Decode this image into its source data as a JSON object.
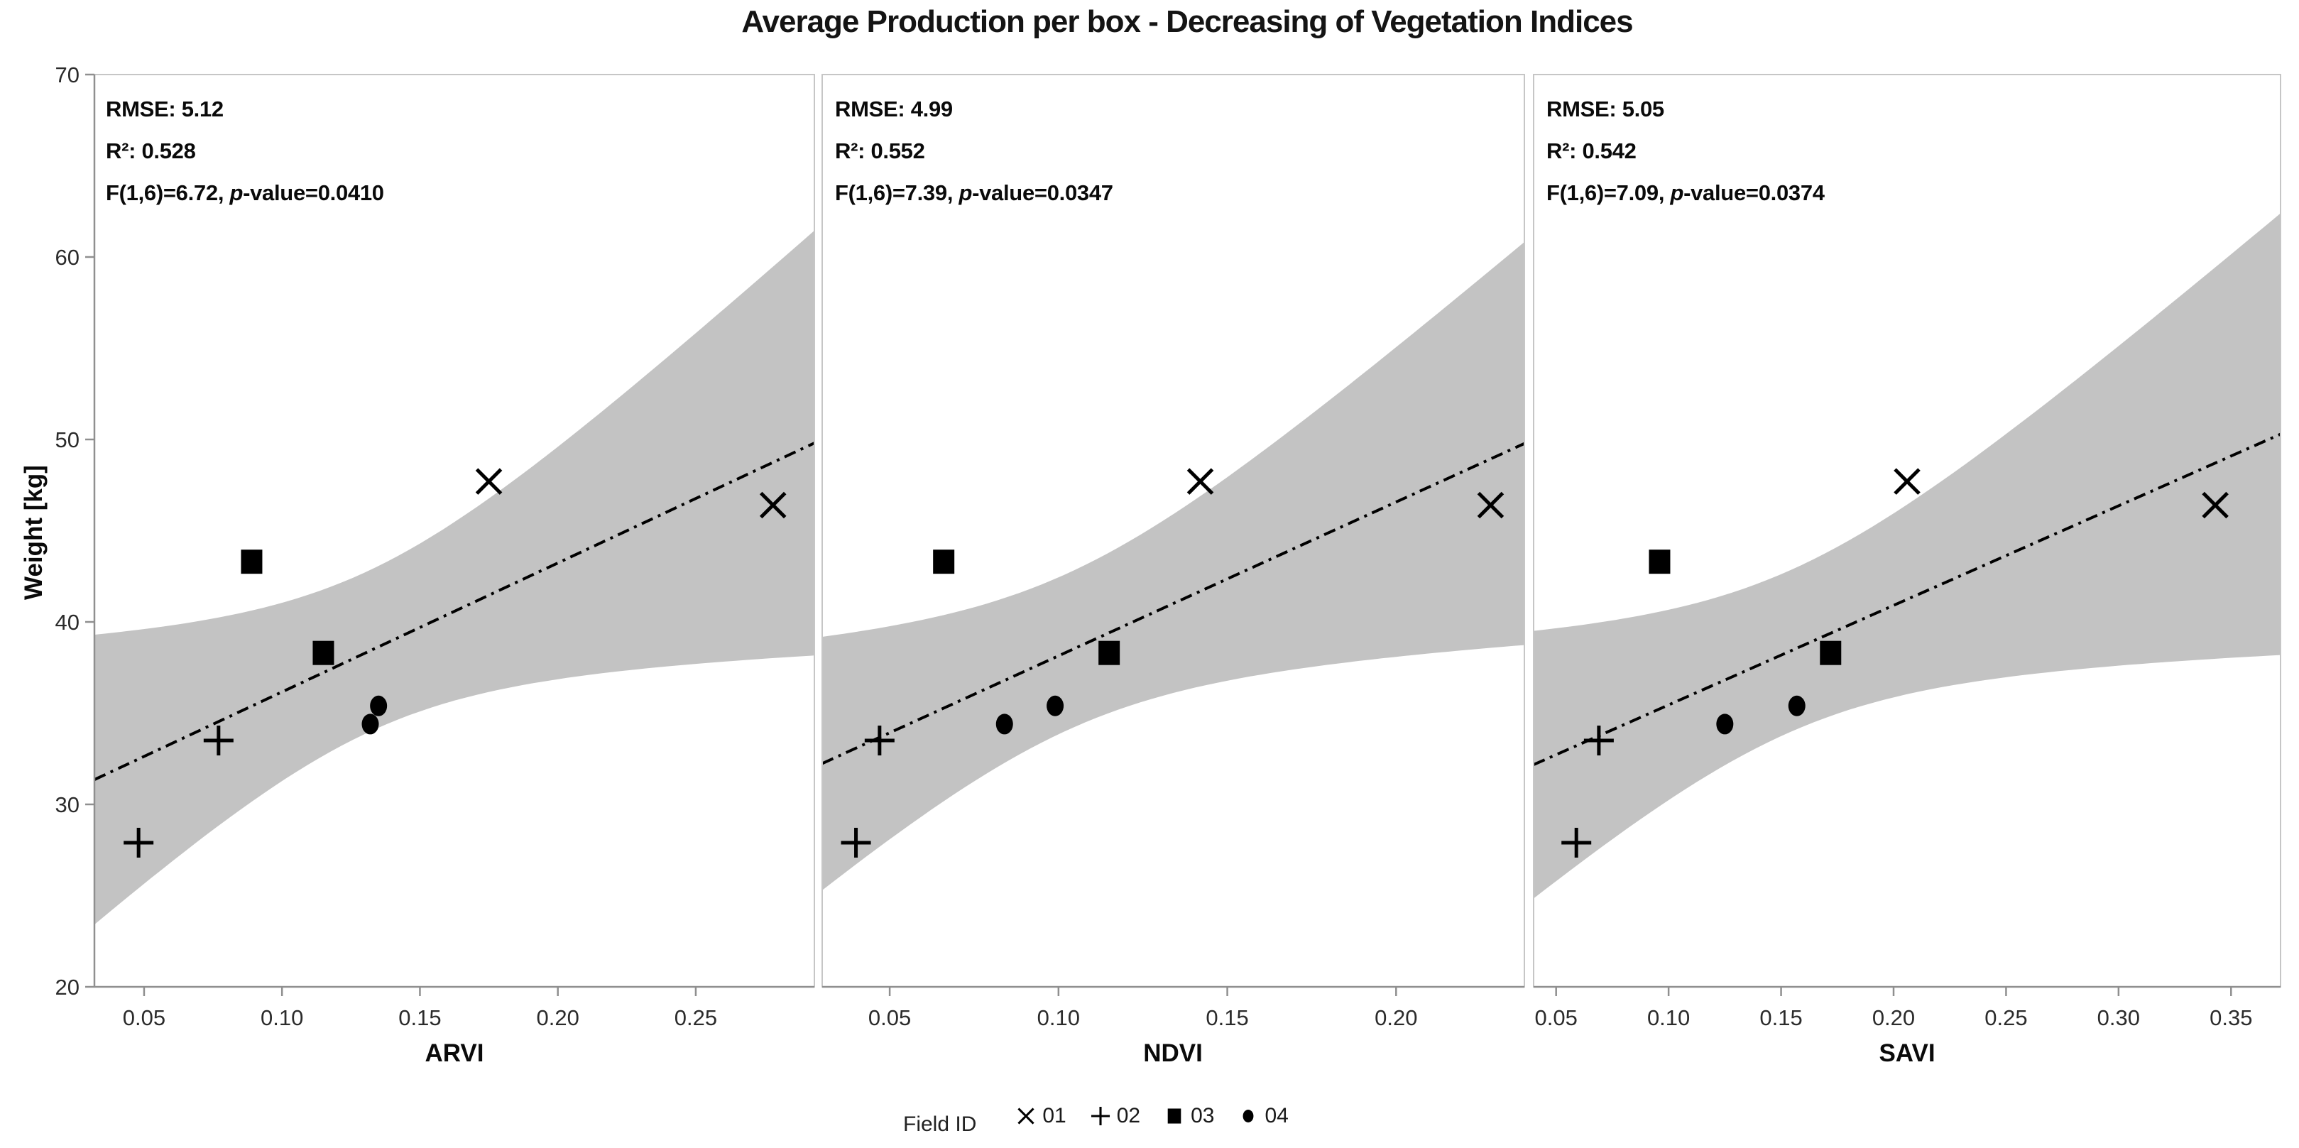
{
  "title": "Average Production per box - Decreasing of Vegetation Indices",
  "y_axis": {
    "label": "Weight [kg]",
    "min": 20,
    "max": 70,
    "ticks": [
      70,
      60,
      50,
      40,
      30,
      20
    ]
  },
  "legend": {
    "label": "Field ID",
    "items": [
      {
        "marker": "x",
        "label": "01"
      },
      {
        "marker": "plus",
        "label": "02"
      },
      {
        "marker": "square",
        "label": "03"
      },
      {
        "marker": "dot",
        "label": "04"
      }
    ]
  },
  "colors": {
    "band": "#c3c3c3",
    "regression_line": "#000000",
    "marker": "#000000",
    "panel_border": "#c6c6c6",
    "axis_line": "#8f8f8f",
    "tick_label": "#2b2b2b"
  },
  "chart_data": [
    {
      "type": "scatter",
      "xlabel": "ARVI",
      "ylabel": "Weight [kg]",
      "xlim": [
        0.032,
        0.293
      ],
      "ylim": [
        20,
        70
      ],
      "x_ticks": [
        0.05,
        0.1,
        0.15,
        0.2,
        0.25
      ],
      "stats": {
        "rmse": "RMSE: 5.12",
        "r2": "R²: 0.528",
        "f_prefix": "F(1,6)=6.72, ",
        "p_symbol": "p",
        "p_suffix": "-value=0.0410"
      },
      "regression": {
        "show_line": true,
        "show_band": true,
        "confidence": 0.95
      },
      "series": [
        {
          "name": "01",
          "marker": "x",
          "points": [
            [
              0.175,
              47.7
            ],
            [
              0.278,
              46.4
            ]
          ]
        },
        {
          "name": "02",
          "marker": "plus",
          "points": [
            [
              0.048,
              27.9
            ],
            [
              0.077,
              33.5
            ]
          ]
        },
        {
          "name": "03",
          "marker": "square",
          "points": [
            [
              0.089,
              43.3
            ],
            [
              0.115,
              38.3
            ]
          ]
        },
        {
          "name": "04",
          "marker": "dot",
          "points": [
            [
              0.132,
              34.4
            ],
            [
              0.135,
              35.4
            ]
          ]
        }
      ]
    },
    {
      "type": "scatter",
      "xlabel": "NDVI",
      "ylabel": "Weight [kg]",
      "xlim": [
        0.03,
        0.238
      ],
      "ylim": [
        20,
        70
      ],
      "x_ticks": [
        0.05,
        0.1,
        0.15,
        0.2
      ],
      "stats": {
        "rmse": "RMSE: 4.99",
        "r2": "R²: 0.552",
        "f_prefix": "F(1,6)=7.39, ",
        "p_symbol": "p",
        "p_suffix": "-value=0.0347"
      },
      "regression": {
        "show_line": true,
        "show_band": true,
        "confidence": 0.95
      },
      "series": [
        {
          "name": "01",
          "marker": "x",
          "points": [
            [
              0.142,
              47.7
            ],
            [
              0.228,
              46.4
            ]
          ]
        },
        {
          "name": "02",
          "marker": "plus",
          "points": [
            [
              0.04,
              27.9
            ],
            [
              0.047,
              33.5
            ]
          ]
        },
        {
          "name": "03",
          "marker": "square",
          "points": [
            [
              0.066,
              43.3
            ],
            [
              0.115,
              38.3
            ]
          ]
        },
        {
          "name": "04",
          "marker": "dot",
          "points": [
            [
              0.084,
              34.4
            ],
            [
              0.099,
              35.4
            ]
          ]
        }
      ]
    },
    {
      "type": "scatter",
      "xlabel": "SAVI",
      "ylabel": "Weight [kg]",
      "xlim": [
        0.04,
        0.372
      ],
      "ylim": [
        20,
        70
      ],
      "x_ticks": [
        0.05,
        0.1,
        0.15,
        0.2,
        0.25,
        0.3,
        0.35
      ],
      "stats": {
        "rmse": "RMSE: 5.05",
        "r2": "R²: 0.542",
        "f_prefix": "F(1,6)=7.09, ",
        "p_symbol": "p",
        "p_suffix": "-value=0.0374"
      },
      "regression": {
        "show_line": true,
        "show_band": true,
        "confidence": 0.95
      },
      "series": [
        {
          "name": "01",
          "marker": "x",
          "points": [
            [
              0.206,
              47.7
            ],
            [
              0.343,
              46.4
            ]
          ]
        },
        {
          "name": "02",
          "marker": "plus",
          "points": [
            [
              0.059,
              27.9
            ],
            [
              0.069,
              33.5
            ]
          ]
        },
        {
          "name": "03",
          "marker": "square",
          "points": [
            [
              0.096,
              43.3
            ],
            [
              0.172,
              38.3
            ]
          ]
        },
        {
          "name": "04",
          "marker": "dot",
          "points": [
            [
              0.125,
              34.4
            ],
            [
              0.157,
              35.4
            ]
          ]
        }
      ]
    }
  ]
}
